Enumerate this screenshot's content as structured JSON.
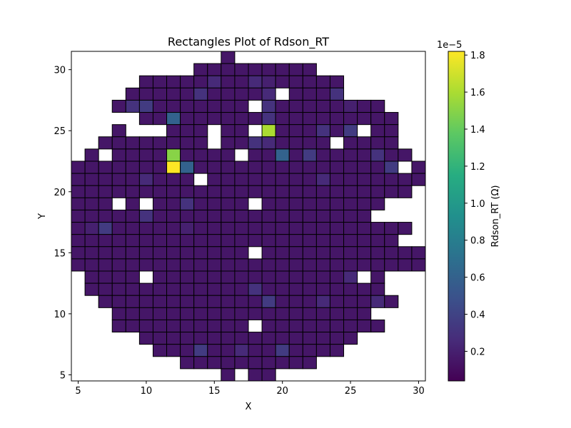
{
  "chart_data": {
    "type": "heatmap",
    "title": "Rectangles Plot of Rdson_RT",
    "xlabel": "X",
    "ylabel": "Y",
    "xlim": [
      4.5,
      30.5
    ],
    "ylim": [
      4.5,
      31.5
    ],
    "x_ticks": [
      5,
      10,
      15,
      20,
      25,
      30
    ],
    "y_ticks": [
      5,
      10,
      15,
      20,
      25,
      30
    ],
    "colorbar": {
      "label": "Rdson_RT  (Ω)",
      "offset_text": "1e−5",
      "range": [
        0.04,
        1.82
      ],
      "ticks": [
        0.2,
        0.4,
        0.6,
        0.8,
        1.0,
        1.2,
        1.4,
        1.6,
        1.8
      ],
      "tick_labels": [
        "0.2",
        "0.4",
        "0.6",
        "0.8",
        "1.0",
        "1.2",
        "1.4",
        "1.6",
        "1.8"
      ],
      "colormap": "viridis"
    },
    "cell_size": 1,
    "default_value": 0.15,
    "rows": [
      {
        "y": 31,
        "x_start": 16,
        "x_end": 16
      },
      {
        "y": 30,
        "x_start": 14,
        "x_end": 22
      },
      {
        "y": 29,
        "x_start": 10,
        "x_end": 24,
        "overrides": {
          "15": 0.25,
          "18": 0.25,
          "19": 0.2
        }
      },
      {
        "y": 28,
        "x_start": 9,
        "x_end": 24,
        "missing": [
          20
        ],
        "overrides": {
          "14": 0.3,
          "19": 0.25,
          "24": 0.3
        }
      },
      {
        "y": 27,
        "x_start": 8,
        "x_end": 27,
        "missing": [
          18
        ],
        "overrides": {
          "9": 0.3,
          "10": 0.35,
          "19": 0.3,
          "25": 0.2
        }
      },
      {
        "y": 26,
        "x_start": 10,
        "x_end": 28,
        "overrides": {
          "12": 0.6,
          "19": 0.3
        }
      },
      {
        "y": 25,
        "x_start": 8,
        "x_end": 28,
        "missing": [
          9,
          10,
          11,
          15,
          18,
          26
        ],
        "overrides": {
          "19": 1.6,
          "23": 0.3,
          "25": 0.35
        }
      },
      {
        "y": 24,
        "x_start": 7,
        "x_end": 28,
        "missing": [
          15,
          24
        ],
        "overrides": {
          "18": 0.3,
          "19": 0.25
        }
      },
      {
        "y": 23,
        "x_start": 6,
        "x_end": 29,
        "missing": [
          7,
          17
        ],
        "overrides": {
          "12": 1.5,
          "20": 0.6,
          "22": 0.35,
          "27": 0.3
        }
      },
      {
        "y": 22,
        "x_start": 5,
        "x_end": 30,
        "missing": [
          29
        ],
        "overrides": {
          "12": 1.82,
          "13": 0.6,
          "28": 0.35
        }
      },
      {
        "y": 21,
        "x_start": 5,
        "x_end": 30,
        "missing": [
          14
        ],
        "overrides": {
          "10": 0.25,
          "23": 0.25
        }
      },
      {
        "y": 20,
        "x_start": 5,
        "x_end": 29
      },
      {
        "y": 19,
        "x_start": 5,
        "x_end": 27,
        "missing": [
          8,
          10,
          18
        ],
        "overrides": {
          "13": 0.3
        }
      },
      {
        "y": 18,
        "x_start": 5,
        "x_end": 26,
        "overrides": {
          "10": 0.3
        }
      },
      {
        "y": 17,
        "x_start": 5,
        "x_end": 29,
        "overrides": {
          "7": 0.35,
          "6": 0.2,
          "13": 0.2
        }
      },
      {
        "y": 16,
        "x_start": 5,
        "x_end": 28
      },
      {
        "y": 15,
        "x_start": 5,
        "x_end": 30,
        "missing": [
          18
        ]
      },
      {
        "y": 14,
        "x_start": 5,
        "x_end": 30
      },
      {
        "y": 13,
        "x_start": 6,
        "x_end": 27,
        "missing": [
          10,
          26
        ],
        "overrides": {
          "25": 0.25
        }
      },
      {
        "y": 12,
        "x_start": 6,
        "x_end": 27,
        "overrides": {
          "18": 0.3
        }
      },
      {
        "y": 11,
        "x_start": 7,
        "x_end": 28,
        "overrides": {
          "19": 0.35,
          "23": 0.25,
          "27": 0.25
        }
      },
      {
        "y": 10,
        "x_start": 8,
        "x_end": 26
      },
      {
        "y": 9,
        "x_start": 8,
        "x_end": 27,
        "missing": [
          18
        ]
      },
      {
        "y": 8,
        "x_start": 10,
        "x_end": 25
      },
      {
        "y": 7,
        "x_start": 11,
        "x_end": 24,
        "overrides": {
          "14": 0.35,
          "20": 0.35,
          "17": 0.25
        }
      },
      {
        "y": 6,
        "x_start": 13,
        "x_end": 22
      },
      {
        "y": 5,
        "x_start": 16,
        "x_end": 19,
        "missing": [
          17
        ]
      }
    ]
  }
}
